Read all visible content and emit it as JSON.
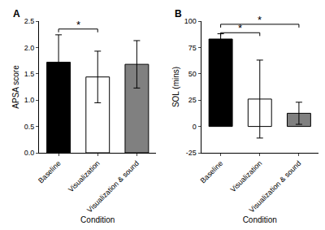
{
  "chart_data": [
    {
      "type": "bar",
      "title": "A",
      "categories": [
        "Baseline",
        "Visualization",
        "Visualization & sound"
      ],
      "values": [
        1.72,
        1.44,
        1.68
      ],
      "error": [
        0.52,
        0.49,
        0.45
      ],
      "colors": [
        "#000000",
        "#ffffff",
        "#808080"
      ],
      "x_label": "Condition",
      "y_label": "APSA score",
      "ylim": [
        0,
        2.5
      ],
      "yticks": [
        {
          "value": 0,
          "label": "0.0"
        },
        {
          "value": 0.5,
          "label": "0.5"
        },
        {
          "value": 1,
          "label": "1.0"
        },
        {
          "value": 1.5,
          "label": "1.5"
        },
        {
          "value": 2,
          "label": "2.0"
        },
        {
          "value": 2.5,
          "label": "2.5"
        }
      ],
      "grid": false,
      "annotations": [
        {
          "text": "*",
          "from": "Baseline",
          "to": "Visualization",
          "y": 2.35
        }
      ]
    },
    {
      "type": "bar",
      "title": "B",
      "categories": [
        "Baseline",
        "Visualization",
        "Visualization & sound"
      ],
      "values": [
        83,
        26,
        12.5
      ],
      "error": [
        5,
        37,
        10.5
      ],
      "colors": [
        "#000000",
        "#ffffff",
        "#808080"
      ],
      "x_label": "Condition",
      "y_label": "SOL (mins)",
      "ylim": [
        -25,
        100
      ],
      "yticks": [
        -25,
        0,
        25,
        50,
        75,
        100
      ],
      "grid": false,
      "annotations": [
        {
          "text": "*",
          "from": "Baseline",
          "to": "Visualization",
          "y": 89
        },
        {
          "text": "*",
          "from": "Baseline",
          "to": "Visualization & sound",
          "y": 97
        }
      ]
    }
  ]
}
